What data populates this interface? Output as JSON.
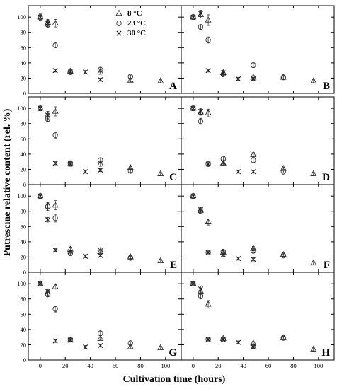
{
  "chart_data": {
    "type": "scatter",
    "xlabel": "Cultivation time (hours)",
    "ylabel": "Putrescine relative content (rel. %)",
    "xlim": [
      -5,
      108
    ],
    "ylim": [
      0,
      115
    ],
    "xticks": [
      "0",
      "20",
      "40",
      "60",
      "80",
      "100"
    ],
    "yticks": [
      "0",
      "20",
      "40",
      "60",
      "80",
      "100"
    ],
    "grid": false,
    "legend": {
      "placement": "top-right of panel A",
      "entries": [
        {
          "marker": "triangle",
          "label": "8 °C"
        },
        {
          "marker": "circle",
          "label": "23 °C"
        },
        {
          "marker": "cross",
          "label": "30 °C"
        }
      ]
    },
    "panels": [
      {
        "label": "A",
        "series": [
          {
            "marker": "triangle",
            "points": [
              [
                0,
                100,
                4
              ],
              [
                6,
                93,
                4
              ],
              [
                12,
                92,
                5
              ],
              [
                24,
                29,
                3
              ],
              [
                48,
                28,
                3
              ],
              [
                72,
                17,
                2
              ],
              [
                96,
                16,
                2
              ]
            ]
          },
          {
            "marker": "circle",
            "points": [
              [
                0,
                100,
                3
              ],
              [
                6,
                90,
                4
              ],
              [
                12,
                63,
                3
              ],
              [
                24,
                28,
                2
              ],
              [
                48,
                31,
                3
              ],
              [
                72,
                22,
                2
              ]
            ]
          },
          {
            "marker": "cross",
            "points": [
              [
                0,
                100,
                3
              ],
              [
                6,
                92,
                4
              ],
              [
                12,
                30,
                2
              ],
              [
                24,
                28,
                2
              ],
              [
                36,
                28,
                2
              ],
              [
                48,
                18,
                2
              ]
            ]
          }
        ]
      },
      {
        "label": "B",
        "series": [
          {
            "marker": "triangle",
            "points": [
              [
                0,
                100,
                3
              ],
              [
                6,
                103,
                4
              ],
              [
                12,
                96,
                7
              ],
              [
                24,
                27,
                3
              ],
              [
                48,
                21,
                2
              ],
              [
                72,
                21,
                2
              ],
              [
                96,
                16,
                2
              ]
            ]
          },
          {
            "marker": "circle",
            "points": [
              [
                0,
                100,
                3
              ],
              [
                6,
                87,
                3
              ],
              [
                12,
                70,
                4
              ],
              [
                24,
                25,
                2
              ],
              [
                48,
                37,
                3
              ],
              [
                72,
                21,
                2
              ]
            ]
          },
          {
            "marker": "cross",
            "points": [
              [
                0,
                100,
                3
              ],
              [
                6,
                105,
                4
              ],
              [
                12,
                30,
                2
              ],
              [
                24,
                27,
                2
              ],
              [
                36,
                19,
                2
              ],
              [
                48,
                19,
                2
              ]
            ]
          }
        ]
      },
      {
        "label": "C",
        "series": [
          {
            "marker": "triangle",
            "points": [
              [
                0,
                100,
                3
              ],
              [
                6,
                91,
                4
              ],
              [
                12,
                96,
                6
              ],
              [
                24,
                27,
                3
              ],
              [
                48,
                27,
                3
              ],
              [
                72,
                22,
                2
              ],
              [
                96,
                14,
                2
              ]
            ]
          },
          {
            "marker": "circle",
            "points": [
              [
                0,
                100,
                3
              ],
              [
                6,
                86,
                3
              ],
              [
                12,
                65,
                4
              ],
              [
                24,
                28,
                2
              ],
              [
                48,
                32,
                3
              ],
              [
                72,
                18,
                2
              ]
            ]
          },
          {
            "marker": "cross",
            "points": [
              [
                0,
                100,
                3
              ],
              [
                6,
                91,
                5
              ],
              [
                12,
                28,
                2
              ],
              [
                24,
                27,
                2
              ],
              [
                36,
                17,
                2
              ],
              [
                48,
                19,
                2
              ]
            ]
          }
        ]
      },
      {
        "label": "D",
        "series": [
          {
            "marker": "triangle",
            "points": [
              [
                0,
                100,
                3
              ],
              [
                6,
                95,
                4
              ],
              [
                12,
                94,
                5
              ],
              [
                24,
                28,
                3
              ],
              [
                48,
                39,
                3
              ],
              [
                72,
                21,
                2
              ],
              [
                96,
                14,
                2
              ]
            ]
          },
          {
            "marker": "circle",
            "points": [
              [
                0,
                100,
                3
              ],
              [
                6,
                83,
                4
              ],
              [
                12,
                27,
                2
              ],
              [
                24,
                34,
                3
              ],
              [
                48,
                32,
                3
              ],
              [
                72,
                17,
                2
              ]
            ]
          },
          {
            "marker": "cross",
            "points": [
              [
                0,
                100,
                3
              ],
              [
                6,
                96,
                4
              ],
              [
                12,
                27,
                2
              ],
              [
                24,
                29,
                2
              ],
              [
                36,
                17,
                2
              ],
              [
                48,
                17,
                2
              ]
            ]
          }
        ]
      },
      {
        "label": "E",
        "series": [
          {
            "marker": "triangle",
            "points": [
              [
                0,
                100,
                3
              ],
              [
                6,
                88,
                4
              ],
              [
                12,
                88,
                6
              ],
              [
                24,
                30,
                3
              ],
              [
                48,
                27,
                3
              ],
              [
                72,
                20,
                2
              ],
              [
                96,
                15,
                2
              ]
            ]
          },
          {
            "marker": "circle",
            "points": [
              [
                0,
                100,
                3
              ],
              [
                6,
                86,
                5
              ],
              [
                12,
                71,
                5
              ],
              [
                24,
                25,
                2
              ],
              [
                48,
                29,
                3
              ],
              [
                72,
                19,
                2
              ]
            ]
          },
          {
            "marker": "cross",
            "points": [
              [
                0,
                100,
                3
              ],
              [
                6,
                69,
                3
              ],
              [
                12,
                29,
                2
              ],
              [
                24,
                27,
                2
              ],
              [
                36,
                21,
                2
              ],
              [
                48,
                22,
                2
              ]
            ]
          }
        ]
      },
      {
        "label": "F",
        "series": [
          {
            "marker": "triangle",
            "points": [
              [
                0,
                100,
                3
              ],
              [
                6,
                81,
                4
              ],
              [
                12,
                66,
                4
              ],
              [
                24,
                26,
                2
              ],
              [
                48,
                31,
                3
              ],
              [
                72,
                23,
                2
              ],
              [
                96,
                12,
                2
              ]
            ]
          },
          {
            "marker": "circle",
            "points": [
              [
                0,
                100,
                3
              ],
              [
                6,
                80,
                3
              ],
              [
                12,
                26,
                2
              ],
              [
                24,
                27,
                2
              ],
              [
                48,
                28,
                2
              ],
              [
                72,
                22,
                2
              ]
            ]
          },
          {
            "marker": "cross",
            "points": [
              [
                0,
                100,
                3
              ],
              [
                6,
                82,
                3
              ],
              [
                12,
                26,
                2
              ],
              [
                24,
                23,
                2
              ],
              [
                36,
                18,
                2
              ],
              [
                48,
                17,
                2
              ]
            ]
          }
        ]
      },
      {
        "label": "G",
        "series": [
          {
            "marker": "triangle",
            "points": [
              [
                0,
                100,
                3
              ],
              [
                6,
                89,
                4
              ],
              [
                12,
                96,
                3
              ],
              [
                24,
                26,
                2
              ],
              [
                48,
                28,
                2
              ],
              [
                72,
                17,
                2
              ],
              [
                96,
                16,
                2
              ]
            ]
          },
          {
            "marker": "circle",
            "points": [
              [
                0,
                100,
                3
              ],
              [
                6,
                86,
                3
              ],
              [
                12,
                67,
                4
              ],
              [
                24,
                27,
                2
              ],
              [
                48,
                35,
                3
              ],
              [
                72,
                22,
                2
              ]
            ]
          },
          {
            "marker": "cross",
            "points": [
              [
                0,
                100,
                3
              ],
              [
                6,
                90,
                3
              ],
              [
                12,
                25,
                2
              ],
              [
                24,
                26,
                2
              ],
              [
                36,
                17,
                2
              ],
              [
                48,
                19,
                2
              ]
            ]
          }
        ]
      },
      {
        "label": "H",
        "series": [
          {
            "marker": "triangle",
            "points": [
              [
                0,
                100,
                3
              ],
              [
                6,
                90,
                4
              ],
              [
                12,
                73,
                5
              ],
              [
                24,
                28,
                2
              ],
              [
                48,
                22,
                2
              ],
              [
                72,
                29,
                2
              ],
              [
                96,
                14,
                2
              ]
            ]
          },
          {
            "marker": "circle",
            "points": [
              [
                0,
                100,
                3
              ],
              [
                6,
                84,
                4
              ],
              [
                12,
                27,
                2
              ],
              [
                24,
                27,
                2
              ],
              [
                48,
                18,
                2
              ],
              [
                72,
                29,
                2
              ]
            ]
          },
          {
            "marker": "cross",
            "points": [
              [
                0,
                100,
                3
              ],
              [
                6,
                93,
                4
              ],
              [
                12,
                27,
                2
              ],
              [
                24,
                27,
                2
              ],
              [
                36,
                23,
                2
              ],
              [
                48,
                17,
                2
              ]
            ]
          }
        ]
      }
    ]
  }
}
